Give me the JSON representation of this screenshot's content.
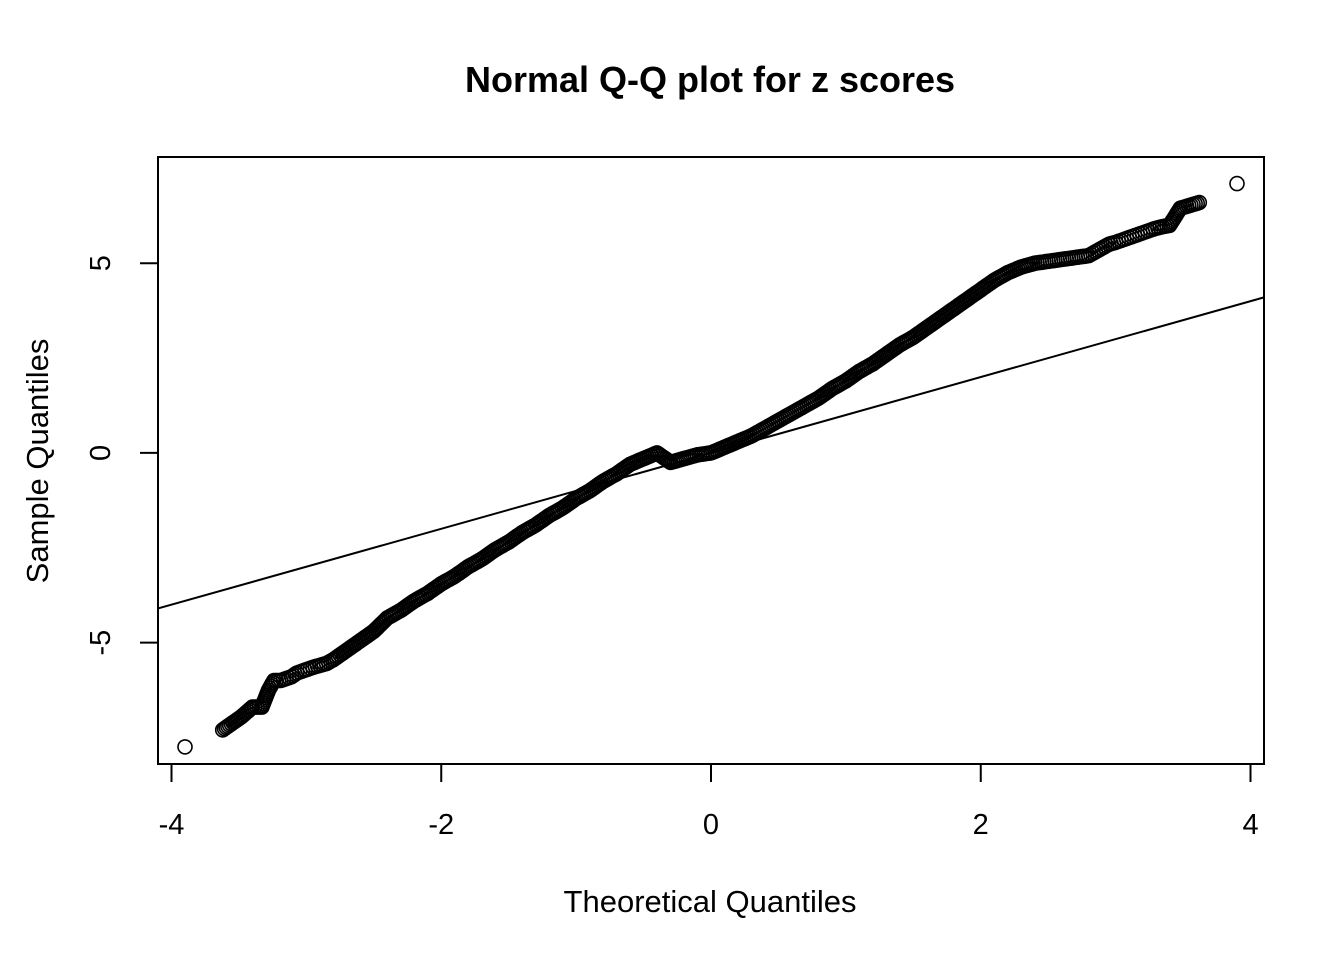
{
  "chart_data": {
    "type": "scatter",
    "title": "Normal Q-Q plot for z scores",
    "xlabel": "Theoretical Quantiles",
    "ylabel": "Sample Quantiles",
    "xlim": [
      -4.1,
      4.1
    ],
    "ylim": [
      -8.2,
      7.8
    ],
    "xticks": [
      -4,
      -2,
      0,
      2,
      4
    ],
    "xtick_labels": [
      "-4",
      "-2",
      "0",
      "2",
      "4"
    ],
    "yticks": [
      -5,
      0,
      5
    ],
    "ytick_labels": [
      "-5",
      "0",
      "5"
    ],
    "grid": false,
    "legend": "none",
    "reference_line": {
      "slope": 1,
      "intercept": 0
    },
    "points_x": [
      -3.9,
      -3.62,
      -3.48,
      -3.4,
      -3.33,
      -3.28,
      -3.24,
      -3.19,
      -3.15,
      -3.11,
      -3.07,
      -3.03,
      -2.99,
      -2.95,
      -2.9,
      -2.85,
      -2.8,
      -2.7,
      -2.6,
      -2.5,
      -2.4,
      -2.3,
      -2.2,
      -2.1,
      -2.0,
      -1.9,
      -1.8,
      -1.7,
      -1.6,
      -1.5,
      -1.4,
      -1.3,
      -1.2,
      -1.1,
      -1.0,
      -0.9,
      -0.8,
      -0.7,
      -0.6,
      -0.5,
      -0.4,
      -0.3,
      -0.2,
      -0.1,
      0.0,
      0.1,
      0.2,
      0.3,
      0.4,
      0.5,
      0.6,
      0.7,
      0.8,
      0.9,
      1.0,
      1.1,
      1.2,
      1.3,
      1.4,
      1.5,
      1.6,
      1.7,
      1.8,
      1.9,
      2.0,
      2.1,
      2.2,
      2.3,
      2.4,
      2.5,
      2.6,
      2.7,
      2.8,
      2.85,
      2.9,
      2.95,
      3.0,
      3.04,
      3.08,
      3.12,
      3.16,
      3.2,
      3.24,
      3.28,
      3.33,
      3.4,
      3.48,
      3.62,
      3.9
    ],
    "points_y": [
      -7.75,
      -7.3,
      -6.95,
      -6.7,
      -6.7,
      -6.25,
      -6.0,
      -6.0,
      -5.95,
      -5.9,
      -5.8,
      -5.75,
      -5.7,
      -5.65,
      -5.6,
      -5.55,
      -5.45,
      -5.2,
      -4.95,
      -4.7,
      -4.35,
      -4.15,
      -3.9,
      -3.7,
      -3.45,
      -3.25,
      -3.0,
      -2.8,
      -2.55,
      -2.35,
      -2.1,
      -1.9,
      -1.65,
      -1.45,
      -1.2,
      -1.0,
      -0.75,
      -0.55,
      -0.3,
      -0.15,
      0.0,
      -0.25,
      -0.15,
      -0.05,
      0.0,
      0.15,
      0.3,
      0.45,
      0.65,
      0.85,
      1.05,
      1.25,
      1.45,
      1.7,
      1.9,
      2.15,
      2.35,
      2.6,
      2.85,
      3.05,
      3.3,
      3.55,
      3.8,
      4.05,
      4.3,
      4.55,
      4.75,
      4.9,
      5.0,
      5.05,
      5.1,
      5.15,
      5.2,
      5.3,
      5.4,
      5.5,
      5.55,
      5.6,
      5.65,
      5.7,
      5.75,
      5.8,
      5.85,
      5.9,
      5.95,
      6.0,
      6.45,
      6.6,
      7.1
    ]
  }
}
